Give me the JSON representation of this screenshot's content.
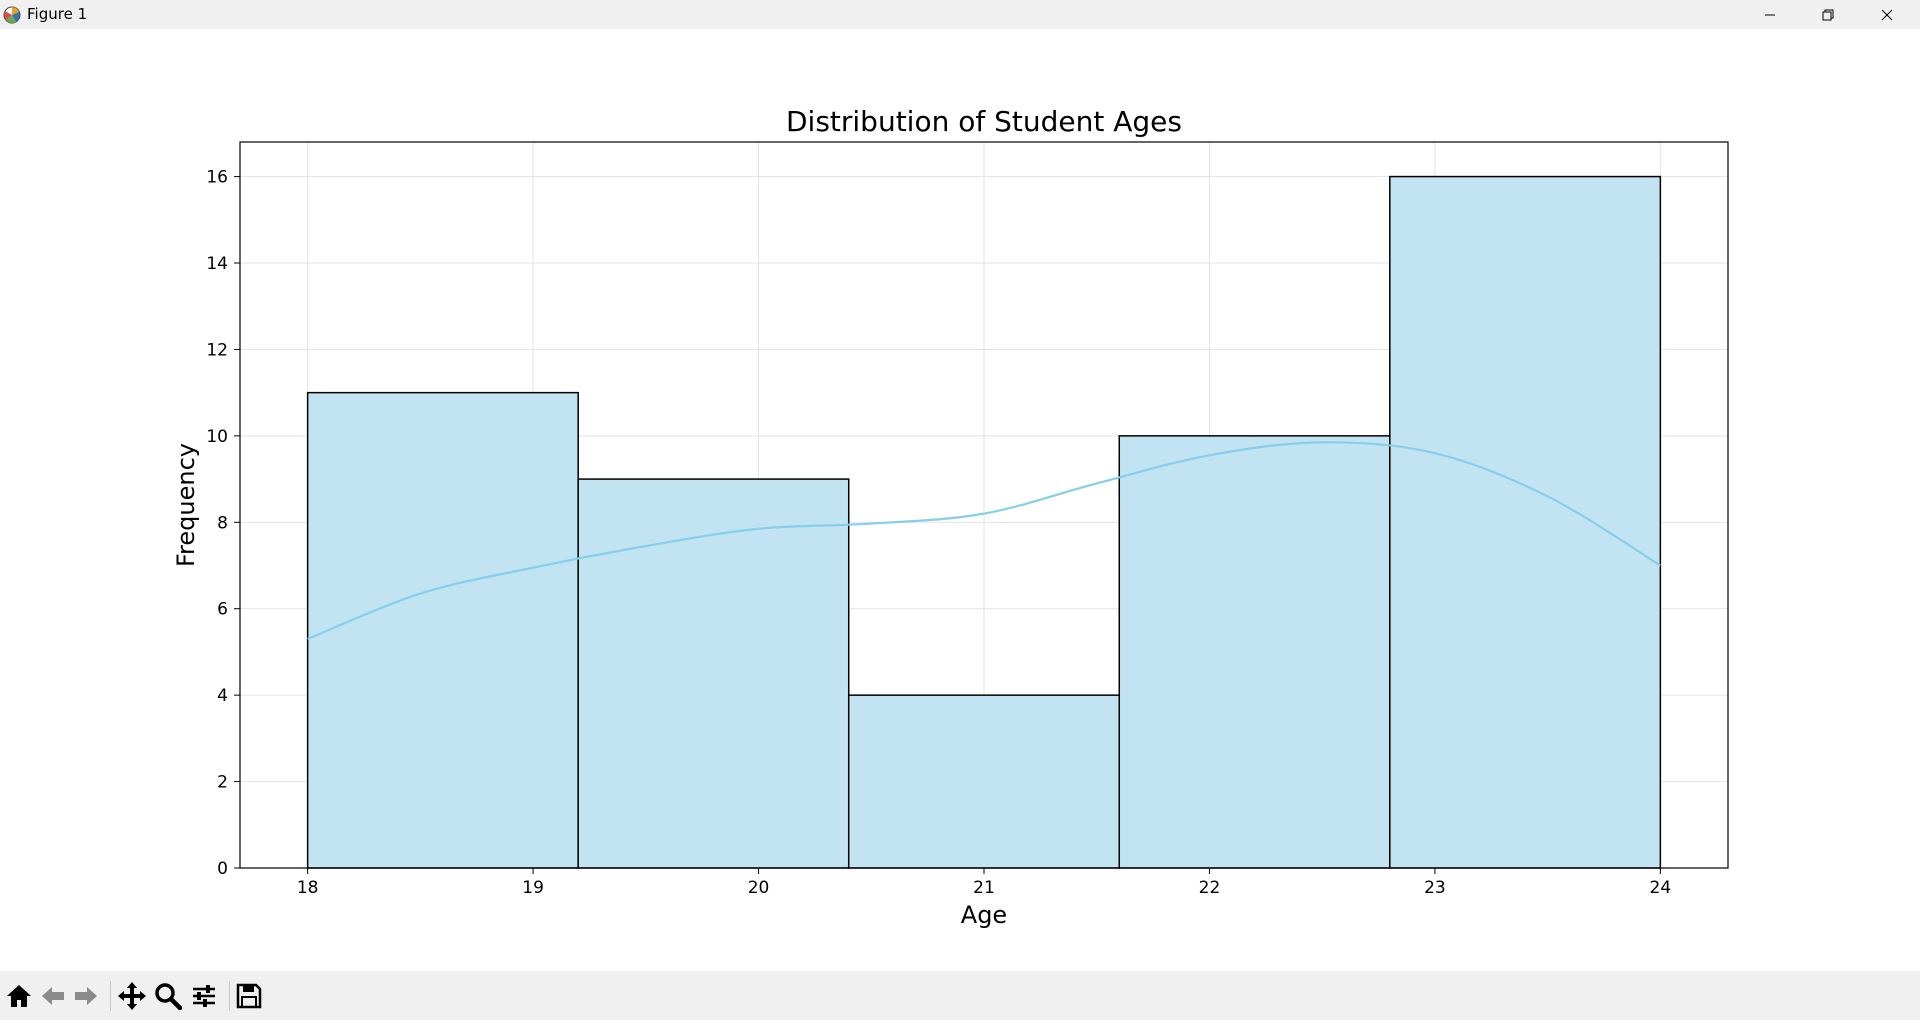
{
  "window": {
    "title": "Figure 1",
    "controls": [
      "minimize-icon",
      "restore-icon",
      "close-icon"
    ]
  },
  "toolbar": {
    "buttons": [
      "home-icon",
      "back-arrow-icon",
      "forward-arrow-icon",
      "pan-icon",
      "zoom-icon",
      "configure-subplots-icon",
      "save-icon"
    ]
  },
  "colors": {
    "bar_fill": "#c2e4f2",
    "bar_edge": "#000000",
    "kde_line": "#87ceeb",
    "grid": "#e3e3e3",
    "chrome": "#f0f0f0"
  },
  "chart_data": {
    "type": "bar",
    "title": "Distribution of Student Ages",
    "xlabel": "Age",
    "ylabel": "Frequency",
    "bins": [
      {
        "start": 18.0,
        "end": 19.2,
        "count": 11
      },
      {
        "start": 19.2,
        "end": 20.4,
        "count": 9
      },
      {
        "start": 20.4,
        "end": 21.6,
        "count": 4
      },
      {
        "start": 21.6,
        "end": 22.8,
        "count": 10
      },
      {
        "start": 22.8,
        "end": 24.0,
        "count": 16
      }
    ],
    "kde": {
      "x": [
        18.0,
        18.5,
        19.0,
        19.5,
        20.0,
        20.5,
        21.0,
        21.5,
        22.0,
        22.5,
        23.0,
        23.5,
        24.0
      ],
      "y": [
        5.3,
        6.35,
        6.95,
        7.45,
        7.85,
        7.97,
        8.2,
        8.9,
        9.55,
        9.85,
        9.6,
        8.6,
        7.0
      ]
    },
    "x_ticks": [
      18,
      19,
      20,
      21,
      22,
      23,
      24
    ],
    "y_ticks": [
      0,
      2,
      4,
      6,
      8,
      10,
      12,
      14,
      16
    ],
    "xlim": [
      17.7,
      24.3
    ],
    "ylim": [
      0,
      16.8
    ],
    "grid": true
  }
}
